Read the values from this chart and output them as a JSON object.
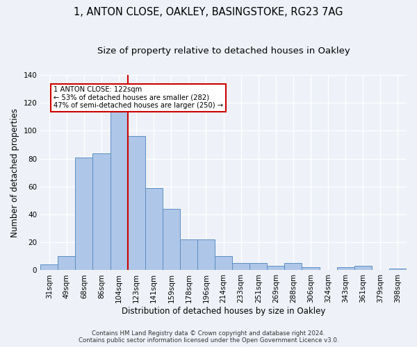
{
  "title_line1": "1, ANTON CLOSE, OAKLEY, BASINGSTOKE, RG23 7AG",
  "title_line2": "Size of property relative to detached houses in Oakley",
  "xlabel": "Distribution of detached houses by size in Oakley",
  "ylabel": "Number of detached properties",
  "categories": [
    "31sqm",
    "49sqm",
    "68sqm",
    "86sqm",
    "104sqm",
    "123sqm",
    "141sqm",
    "159sqm",
    "178sqm",
    "196sqm",
    "214sqm",
    "233sqm",
    "251sqm",
    "269sqm",
    "288sqm",
    "306sqm",
    "324sqm",
    "343sqm",
    "361sqm",
    "379sqm",
    "398sqm"
  ],
  "values": [
    4,
    10,
    81,
    84,
    115,
    96,
    59,
    44,
    22,
    22,
    10,
    5,
    5,
    3,
    5,
    2,
    0,
    2,
    3,
    0,
    1
  ],
  "bar_color": "#aec6e8",
  "bar_edge_color": "#5b8ec4",
  "highlight_index": 4,
  "highlight_line_color": "#cc0000",
  "ylim": [
    0,
    140
  ],
  "yticks": [
    0,
    20,
    40,
    60,
    80,
    100,
    120,
    140
  ],
  "annotation_text": "1 ANTON CLOSE: 122sqm\n← 53% of detached houses are smaller (282)\n47% of semi-detached houses are larger (250) →",
  "annotation_box_color": "#cc0000",
  "footer_line1": "Contains HM Land Registry data © Crown copyright and database right 2024.",
  "footer_line2": "Contains public sector information licensed under the Open Government Licence v3.0.",
  "background_color": "#eef2f8",
  "grid_color": "#ffffff",
  "title_fontsize": 10.5,
  "subtitle_fontsize": 9.5,
  "axis_label_fontsize": 8.5,
  "tick_fontsize": 7.5,
  "footer_fontsize": 6.2
}
